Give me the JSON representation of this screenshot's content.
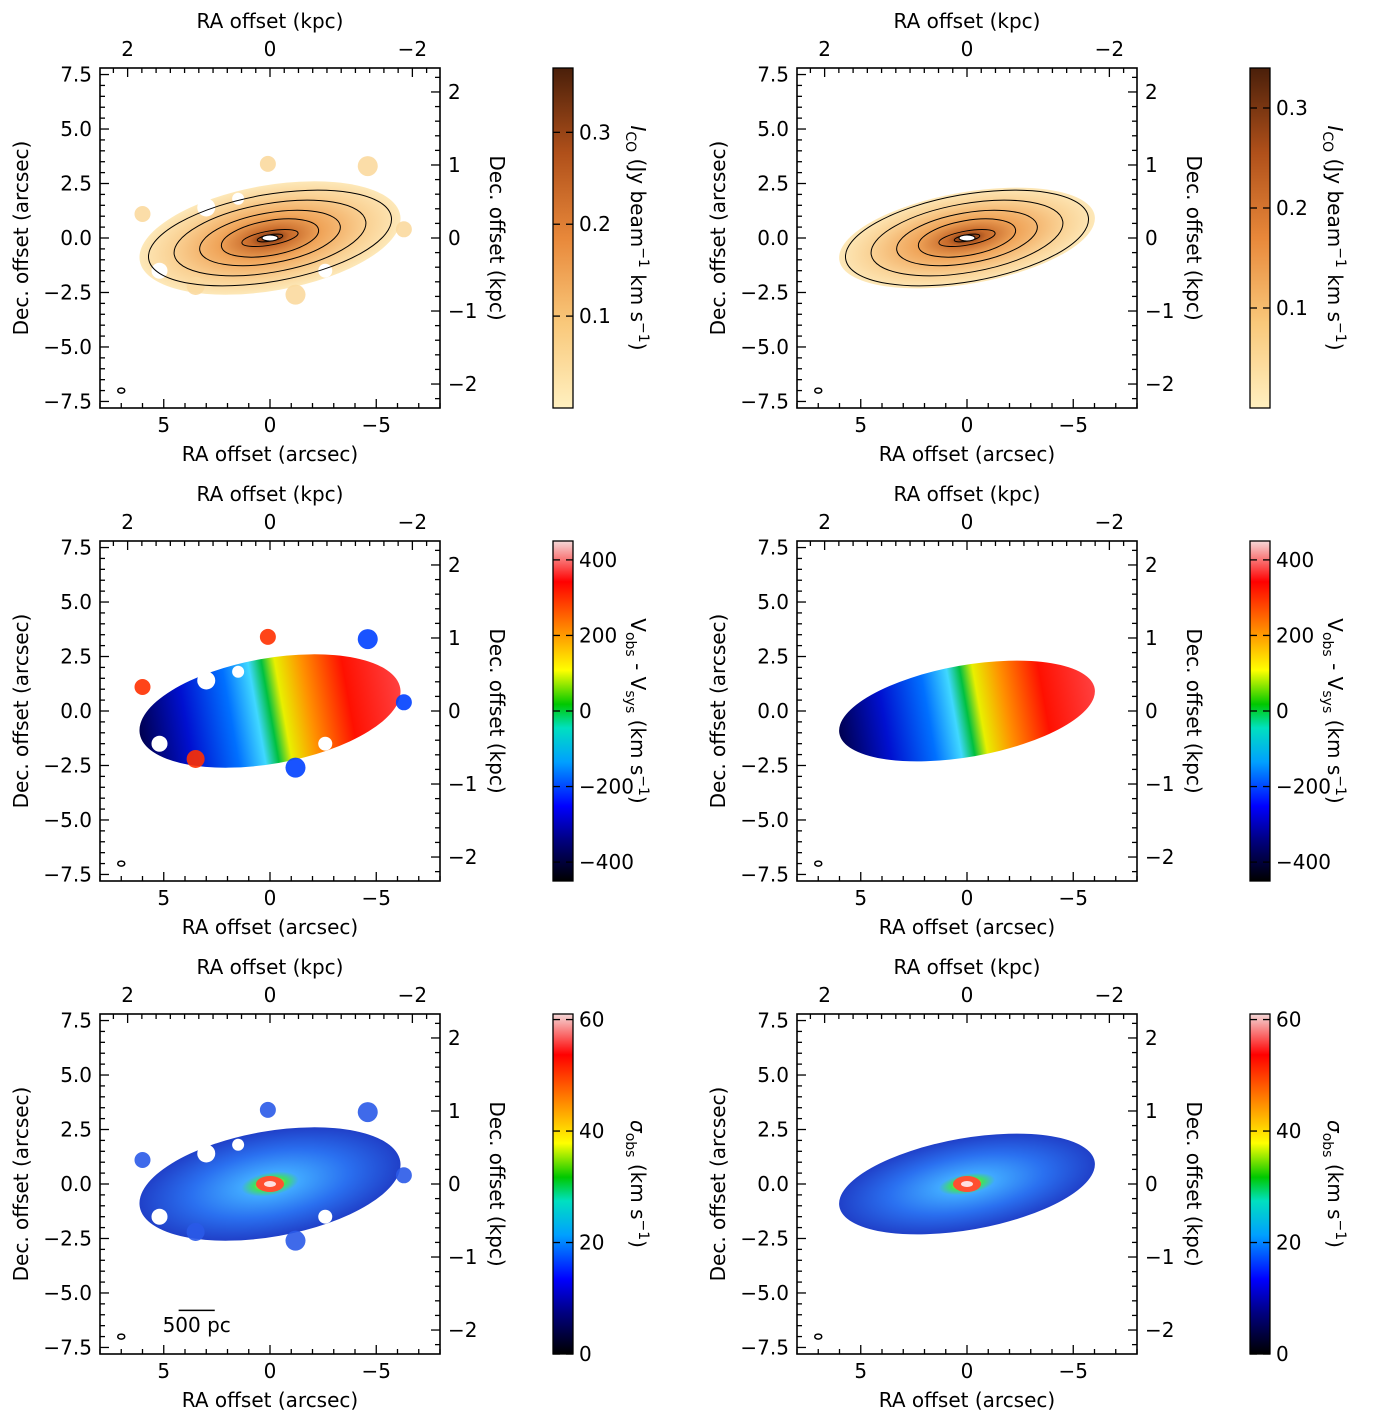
{
  "figure": {
    "scale_bar_label": "500 pc",
    "colorbars": [
      {
        "label_main": "I",
        "label_sub": "CO",
        "label_rest": " (Jy beam",
        "label_sup1": "−1",
        "label_rest2": " km s",
        "label_sup2": "−1",
        "label_end": ")",
        "ticks": [
          "0.1",
          "0.2",
          "0.3"
        ],
        "colormap": "copper-orange"
      },
      {
        "label_main": "V",
        "label_sub": "obs",
        "label_rest": " - V",
        "label_sub2": "sys",
        "label_rest2": " (km s",
        "label_sup2": "−1",
        "label_end": ")",
        "ticks": [
          "−400",
          "−200",
          "0",
          "200",
          "400"
        ],
        "colormap": "rainbow"
      },
      {
        "label_main": "σ",
        "label_sub": "obs",
        "label_rest": " (km s",
        "label_sup2": "−1",
        "label_end": ")",
        "ticks": [
          "0",
          "20",
          "40",
          "60"
        ],
        "colormap": "rainbow"
      }
    ]
  },
  "chart_data": [
    {
      "type": "heatmap",
      "row": 1,
      "col": 1,
      "quantity": "ICO observed moment-0",
      "xlabel": "RA offset (arcsec)",
      "ylabel": "Dec. offset (arcsec)",
      "top_xlabel": "RA offset (kpc)",
      "right_ylabel": "Dec. offset (kpc)",
      "xlim": [
        8,
        -8
      ],
      "ylim": [
        -7.8,
        7.8
      ],
      "x_ticks": [
        "−5",
        "0",
        "5"
      ],
      "y_ticks": [
        "−7.5",
        "−5.0",
        "−2.5",
        "0.0",
        "2.5",
        "5.0",
        "7.5"
      ],
      "top_ticks": [
        "−2",
        "0",
        "2"
      ],
      "right_ticks": [
        "−2",
        "−1",
        "0",
        "1",
        "2"
      ],
      "colorbar_range": [
        0,
        0.37
      ]
    },
    {
      "type": "heatmap",
      "row": 1,
      "col": 2,
      "quantity": "ICO model moment-0",
      "xlabel": "RA offset (arcsec)",
      "ylabel": "Dec. offset (arcsec)",
      "top_xlabel": "RA offset (kpc)",
      "right_ylabel": "Dec. offset (kpc)",
      "xlim": [
        8,
        -8
      ],
      "ylim": [
        -7.8,
        7.8
      ],
      "x_ticks": [
        "−5",
        "0",
        "5"
      ],
      "y_ticks": [
        "−7.5",
        "−5.0",
        "−2.5",
        "0.0",
        "2.5",
        "5.0",
        "7.5"
      ],
      "top_ticks": [
        "−2",
        "0",
        "2"
      ],
      "right_ticks": [
        "−2",
        "−1",
        "0",
        "1",
        "2"
      ],
      "colorbar_range": [
        0,
        0.34
      ]
    },
    {
      "type": "heatmap",
      "row": 2,
      "col": 1,
      "quantity": "Vobs - Vsys observed moment-1",
      "xlabel": "RA offset (arcsec)",
      "ylabel": "Dec. offset (arcsec)",
      "top_xlabel": "RA offset (kpc)",
      "right_ylabel": "Dec. offset (kpc)",
      "xlim": [
        8,
        -8
      ],
      "ylim": [
        -7.8,
        7.8
      ],
      "x_ticks": [
        "−5",
        "0",
        "5"
      ],
      "y_ticks": [
        "−7.5",
        "−5.0",
        "−2.5",
        "0.0",
        "2.5",
        "5.0",
        "7.5"
      ],
      "top_ticks": [
        "−2",
        "0",
        "2"
      ],
      "right_ticks": [
        "−2",
        "−1",
        "0",
        "1",
        "2"
      ],
      "colorbar_range": [
        -450,
        450
      ]
    },
    {
      "type": "heatmap",
      "row": 2,
      "col": 2,
      "quantity": "Vobs - Vsys model moment-1",
      "xlabel": "RA offset (arcsec)",
      "ylabel": "Dec. offset (arcsec)",
      "top_xlabel": "RA offset (kpc)",
      "right_ylabel": "Dec. offset (kpc)",
      "xlim": [
        8,
        -8
      ],
      "ylim": [
        -7.8,
        7.8
      ],
      "x_ticks": [
        "−5",
        "0",
        "5"
      ],
      "y_ticks": [
        "−7.5",
        "−5.0",
        "−2.5",
        "0.0",
        "2.5",
        "5.0",
        "7.5"
      ],
      "top_ticks": [
        "−2",
        "0",
        "2"
      ],
      "right_ticks": [
        "−2",
        "−1",
        "0",
        "1",
        "2"
      ],
      "colorbar_range": [
        -450,
        450
      ]
    },
    {
      "type": "heatmap",
      "row": 3,
      "col": 1,
      "quantity": "sigma_obs observed moment-2",
      "xlabel": "RA offset (arcsec)",
      "ylabel": "Dec. offset (arcsec)",
      "top_xlabel": "RA offset (kpc)",
      "right_ylabel": "Dec. offset (kpc)",
      "xlim": [
        8,
        -8
      ],
      "ylim": [
        -7.8,
        7.8
      ],
      "x_ticks": [
        "−5",
        "0",
        "5"
      ],
      "y_ticks": [
        "−7.5",
        "−5.0",
        "−2.5",
        "0.0",
        "2.5",
        "5.0",
        "7.5"
      ],
      "top_ticks": [
        "−2",
        "0",
        "2"
      ],
      "right_ticks": [
        "−2",
        "−1",
        "0",
        "1",
        "2"
      ],
      "colorbar_range": [
        0,
        61
      ]
    },
    {
      "type": "heatmap",
      "row": 3,
      "col": 2,
      "quantity": "sigma_obs model moment-2",
      "xlabel": "RA offset (arcsec)",
      "ylabel": "Dec. offset (arcsec)",
      "top_xlabel": "RA offset (kpc)",
      "right_ylabel": "Dec. offset (kpc)",
      "xlim": [
        8,
        -8
      ],
      "ylim": [
        -7.8,
        7.8
      ],
      "x_ticks": [
        "−5",
        "0",
        "5"
      ],
      "y_ticks": [
        "−7.5",
        "−5.0",
        "−2.5",
        "0.0",
        "2.5",
        "5.0",
        "7.5"
      ],
      "top_ticks": [
        "−2",
        "0",
        "2"
      ],
      "right_ticks": [
        "−2",
        "−1",
        "0",
        "1",
        "2"
      ],
      "colorbar_range": [
        0,
        61
      ]
    }
  ]
}
